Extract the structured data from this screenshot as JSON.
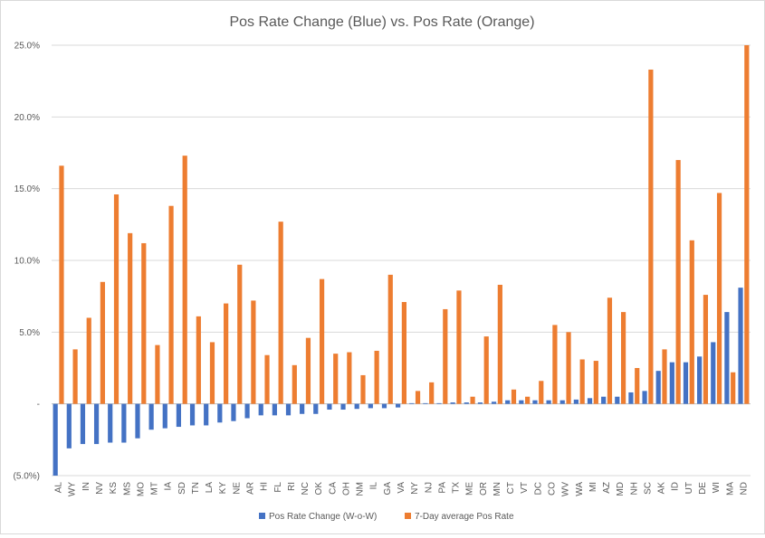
{
  "chart_data": {
    "type": "bar",
    "title": "Pos Rate Change (Blue) vs. Pos Rate (Orange)",
    "xlabel": "",
    "ylabel": "",
    "ylim": [
      -5,
      25
    ],
    "yticks": [
      25,
      20,
      15,
      10,
      5,
      0,
      -5
    ],
    "ytick_labels": [
      "25.0%",
      "20.0%",
      "15.0%",
      "10.0%",
      "5.0%",
      "-",
      "(5.0%)"
    ],
    "grid": true,
    "legend_position": "bottom",
    "categories": [
      "AL",
      "WY",
      "IN",
      "NV",
      "KS",
      "MS",
      "MO",
      "MT",
      "IA",
      "SD",
      "TN",
      "LA",
      "KY",
      "NE",
      "AR",
      "HI",
      "FL",
      "RI",
      "NC",
      "OK",
      "CA",
      "OH",
      "NM",
      "IL",
      "GA",
      "VA",
      "NY",
      "NJ",
      "PA",
      "TX",
      "ME",
      "OR",
      "MN",
      "CT",
      "VT",
      "DC",
      "CO",
      "WV",
      "WA",
      "MI",
      "AZ",
      "MD",
      "NH",
      "SC",
      "AK",
      "ID",
      "UT",
      "DE",
      "WI",
      "MA",
      "ND"
    ],
    "series": [
      {
        "name": "Pos Rate Change (W-o-W)",
        "color": "#4472c4",
        "values": [
          -5.0,
          -3.1,
          -2.8,
          -2.8,
          -2.7,
          -2.7,
          -2.4,
          -1.8,
          -1.7,
          -1.6,
          -1.5,
          -1.5,
          -1.3,
          -1.2,
          -1.0,
          -0.8,
          -0.8,
          -0.8,
          -0.7,
          -0.7,
          -0.4,
          -0.4,
          -0.35,
          -0.3,
          -0.3,
          -0.25,
          0.05,
          0.05,
          0.05,
          0.1,
          0.1,
          0.1,
          0.15,
          0.25,
          0.25,
          0.25,
          0.25,
          0.25,
          0.3,
          0.4,
          0.5,
          0.5,
          0.8,
          0.9,
          2.3,
          2.9,
          2.9,
          3.3,
          4.3,
          6.4,
          8.1
        ]
      },
      {
        "name": "7-Day average Pos Rate",
        "color": "#ed7d31",
        "values": [
          16.6,
          3.8,
          6.0,
          8.5,
          14.6,
          11.9,
          11.2,
          4.1,
          13.8,
          17.3,
          6.1,
          4.3,
          7.0,
          9.7,
          7.2,
          3.4,
          12.7,
          2.7,
          4.6,
          8.7,
          3.5,
          3.6,
          2.0,
          3.7,
          9.0,
          7.1,
          0.9,
          1.5,
          6.6,
          7.9,
          0.5,
          4.7,
          8.3,
          1.0,
          0.5,
          1.6,
          5.5,
          5.0,
          3.1,
          3.0,
          7.4,
          6.4,
          2.5,
          23.3,
          3.8,
          17.0,
          11.4,
          7.6,
          14.7,
          2.2,
          25.0
        ]
      }
    ]
  }
}
